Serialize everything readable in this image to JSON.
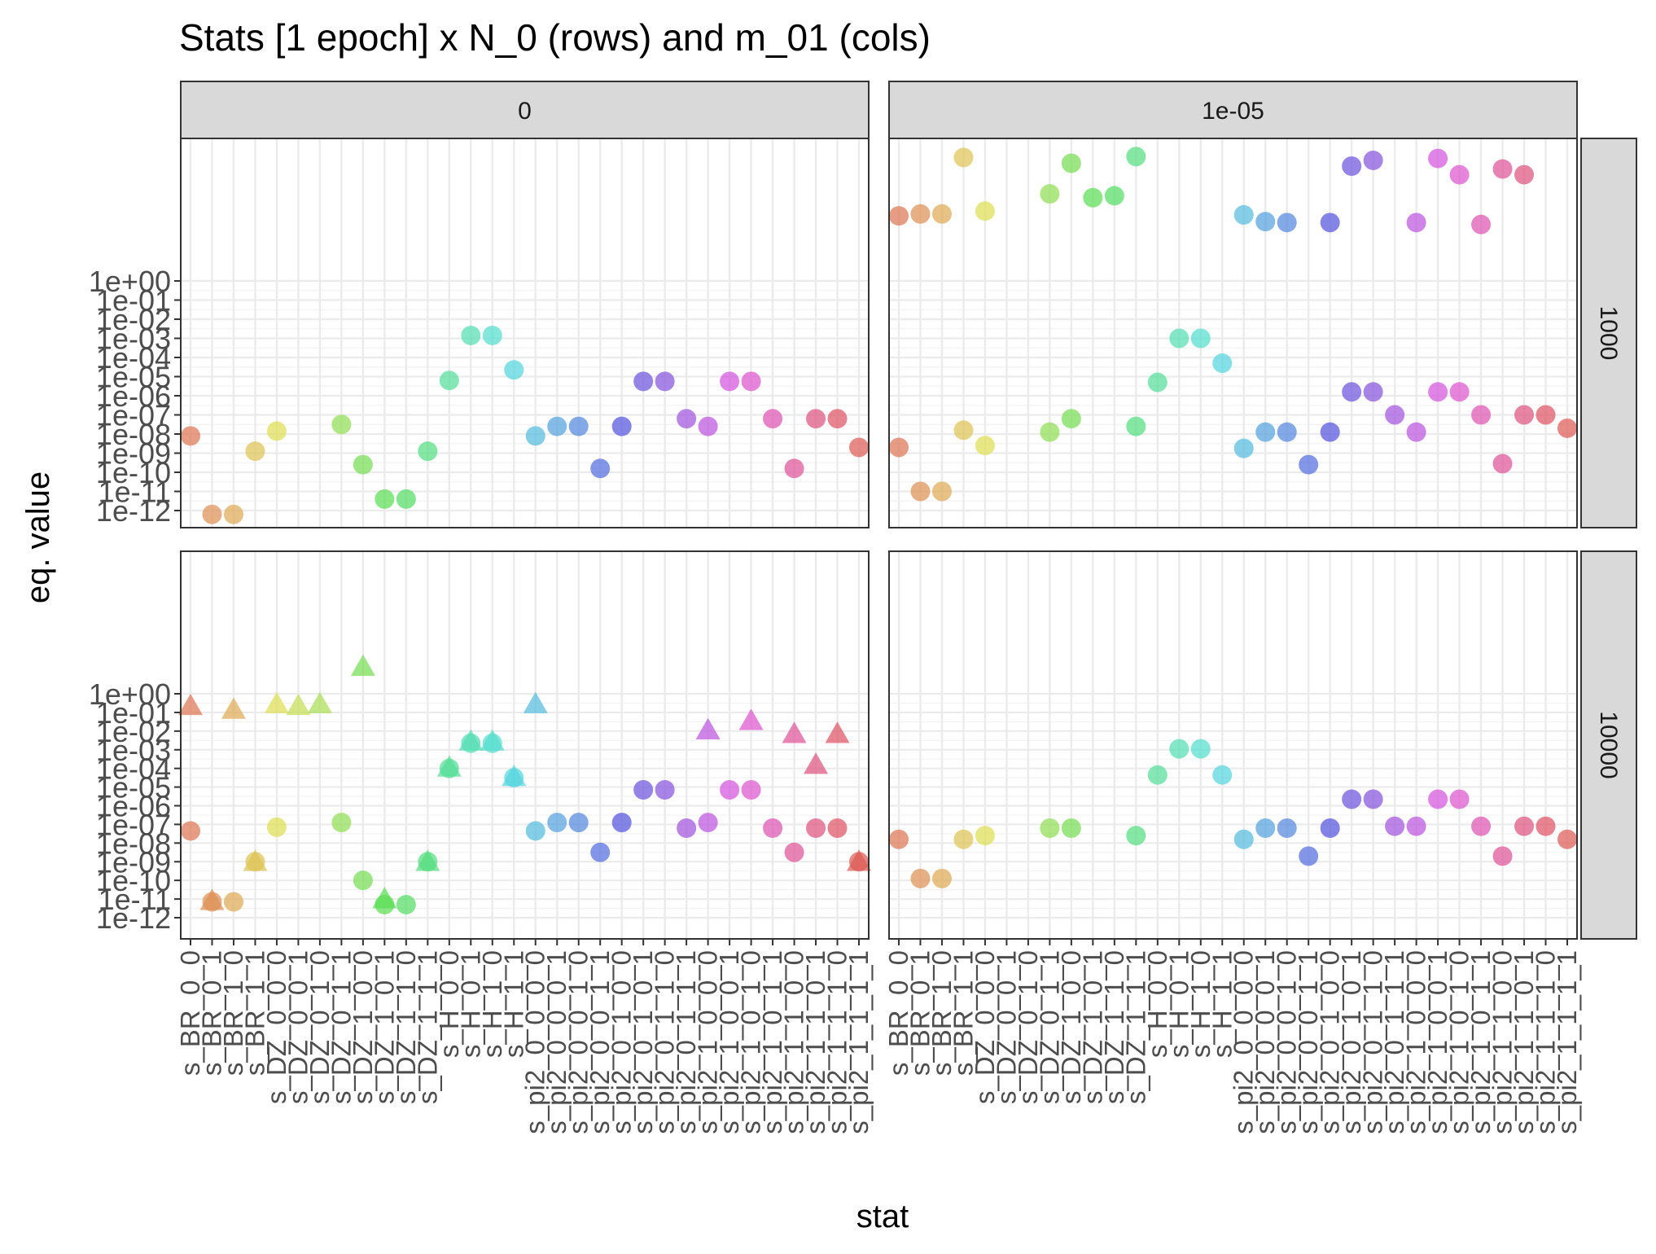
{
  "chart_data": {
    "type": "scatter",
    "title": "Stats [1 epoch] x N_0 (rows) and m_01 (cols)",
    "xlabel": "stat",
    "ylabel": "eq. value",
    "y_scale": "log10",
    "ylim_exponent": [
      -12,
      0
    ],
    "y_ticks": [
      "1e+00",
      "1e-01",
      "1e-02",
      "1e-03",
      "1e-04",
      "1e-05",
      "1e-06",
      "1e-07",
      "1e-08",
      "1e-09",
      "1e-10",
      "1e-11",
      "1e-12"
    ],
    "facet_cols_label": "m_01",
    "facet_rows_label": "N_0",
    "facet_cols": [
      "0",
      "1e-05"
    ],
    "facet_rows": [
      "1000",
      "10000"
    ],
    "categories": [
      "s_BR_0_0",
      "s_BR_0_1",
      "s_BR_1_0",
      "s_BR_1_1",
      "s_DZ_0_0_0",
      "s_DZ_0_0_1",
      "s_DZ_0_1_0",
      "s_DZ_0_1_1",
      "s_DZ_1_0_0",
      "s_DZ_1_0_1",
      "s_DZ_1_1_0",
      "s_DZ_1_1_1",
      "s_H_0_0",
      "s_H_0_1",
      "s_H_1_0",
      "s_H_1_1",
      "s_pi2_0_0_0_0",
      "s_pi2_0_0_0_1",
      "s_pi2_0_0_1_0",
      "s_pi2_0_0_1_1",
      "s_pi2_0_1_0_0",
      "s_pi2_0_1_0_1",
      "s_pi2_0_1_1_0",
      "s_pi2_0_1_1_1",
      "s_pi2_1_0_0_0",
      "s_pi2_1_0_0_1",
      "s_pi2_1_0_1_0",
      "s_pi2_1_0_1_1",
      "s_pi2_1_1_0_0",
      "s_pi2_1_1_0_1",
      "s_pi2_1_1_1_0",
      "s_pi2_1_1_1_1"
    ],
    "x_tick_lines": [
      [
        "s_BR_0_0",
        "s_BR_0_1",
        "s_BR_1_0",
        "s_BR_1_1"
      ],
      [
        "s_DZ_0_0_0",
        "s_DZ_0_0_1",
        "s_DZ_0_1_0",
        "s_DZ_0_1_1",
        "s_DZ_1_0_0",
        "s_DZ_1_0_1",
        "s_DZ_1_1_0",
        "s_DZ_1_1_1"
      ],
      [
        "s_H_0_0",
        "s_H_0_1",
        "s_H_1_0",
        "s_H_1_1"
      ],
      [
        "s_pi2_0_0_0_0",
        "s_pi2_0_0_0_1",
        "s_pi2_0_0_1_0",
        "s_pi2_0_0_1_1",
        "s_pi2_0_1_0_0",
        "s_pi2_0_1_0_1",
        "s_pi2_0_1_1_0",
        "s_pi2_0_1_1_1",
        "s_pi2_1_0_0_0",
        "s_pi2_1_0_0_1",
        "s_pi2_1_0_1_0",
        "s_pi2_1_0_1_1",
        "s_pi2_1_1_0_0",
        "s_pi2_1_1_0_1",
        "s_pi2_1_1_1_0",
        "s_pi2_1_1_1_1"
      ]
    ],
    "grid": true,
    "legend": "none",
    "panels": [
      {
        "row": "1000",
        "col": "0",
        "series": [
          {
            "shape": "circle",
            "points": [
              [
                0,
                -8.1
              ],
              [
                1,
                -12.2
              ],
              [
                2,
                -12.2
              ],
              [
                3,
                -8.9
              ],
              [
                4,
                -7.85
              ],
              [
                7,
                -7.5
              ],
              [
                8,
                -9.6
              ],
              [
                9,
                -11.4
              ],
              [
                10,
                -11.4
              ],
              [
                11,
                -8.9
              ],
              [
                12,
                -5.2
              ],
              [
                13,
                -2.85
              ],
              [
                14,
                -2.85
              ],
              [
                15,
                -4.65
              ],
              [
                16,
                -8.1
              ],
              [
                17,
                -7.6
              ],
              [
                18,
                -7.6
              ],
              [
                19,
                -9.8
              ],
              [
                20,
                -7.6
              ],
              [
                21,
                -5.25
              ],
              [
                22,
                -5.25
              ],
              [
                23,
                -7.2
              ],
              [
                24,
                -7.6
              ],
              [
                25,
                -5.25
              ],
              [
                26,
                -5.25
              ],
              [
                27,
                -7.2
              ],
              [
                28,
                -9.8
              ],
              [
                29,
                -7.2
              ],
              [
                30,
                -7.2
              ],
              [
                31,
                -8.7
              ]
            ]
          }
        ]
      },
      {
        "row": "1000",
        "col": "1e-05",
        "series": [
          {
            "shape": "circle",
            "points": [
              [
                0,
                -8.7
              ],
              [
                1,
                -11.0
              ],
              [
                2,
                -11.0
              ],
              [
                3,
                -7.8
              ],
              [
                4,
                -8.6
              ],
              [
                7,
                -7.9
              ],
              [
                8,
                -7.2
              ],
              [
                11,
                -7.6
              ],
              [
                12,
                -5.3
              ],
              [
                13,
                -3.0
              ],
              [
                14,
                -3.0
              ],
              [
                15,
                -4.3
              ],
              [
                16,
                -8.75
              ],
              [
                17,
                -7.9
              ],
              [
                18,
                -7.9
              ],
              [
                19,
                -9.6
              ],
              [
                20,
                -7.9
              ],
              [
                21,
                -5.8
              ],
              [
                22,
                -5.8
              ],
              [
                23,
                -7.0
              ],
              [
                24,
                -7.9
              ],
              [
                25,
                -5.8
              ],
              [
                26,
                -5.8
              ],
              [
                27,
                -7.0
              ],
              [
                28,
                -9.55
              ],
              [
                29,
                -7.0
              ],
              [
                30,
                -7.0
              ],
              [
                31,
                -7.7
              ]
            ]
          },
          {
            "shape": "circle",
            "points": [
              [
                0,
                3.4
              ],
              [
                1,
                3.5
              ],
              [
                2,
                3.5
              ],
              [
                3,
                6.45
              ],
              [
                4,
                3.65
              ],
              [
                7,
                4.55
              ],
              [
                8,
                6.15
              ],
              [
                9,
                4.35
              ],
              [
                10,
                4.45
              ],
              [
                11,
                6.5
              ],
              [
                16,
                3.45
              ],
              [
                17,
                3.1
              ],
              [
                18,
                3.05
              ],
              [
                20,
                3.05
              ],
              [
                21,
                6.0
              ],
              [
                22,
                6.3
              ],
              [
                24,
                3.05
              ],
              [
                25,
                6.4
              ],
              [
                26,
                5.55
              ],
              [
                27,
                2.95
              ],
              [
                28,
                5.85
              ],
              [
                29,
                5.55
              ]
            ]
          }
        ]
      },
      {
        "row": "10000",
        "col": "0",
        "series": [
          {
            "shape": "circle",
            "points": [
              [
                0,
                -7.35
              ],
              [
                1,
                -11.15
              ],
              [
                2,
                -11.15
              ],
              [
                3,
                -9.0
              ],
              [
                4,
                -7.15
              ],
              [
                7,
                -6.9
              ],
              [
                8,
                -10.0
              ],
              [
                9,
                -11.3
              ],
              [
                10,
                -11.3
              ],
              [
                11,
                -9.0
              ],
              [
                12,
                -4.0
              ],
              [
                13,
                -2.65
              ],
              [
                14,
                -2.65
              ],
              [
                15,
                -4.5
              ],
              [
                16,
                -7.35
              ],
              [
                17,
                -6.9
              ],
              [
                18,
                -6.9
              ],
              [
                19,
                -8.5
              ],
              [
                20,
                -6.9
              ],
              [
                21,
                -5.15
              ],
              [
                22,
                -5.15
              ],
              [
                23,
                -7.2
              ],
              [
                24,
                -6.9
              ],
              [
                25,
                -5.15
              ],
              [
                26,
                -5.15
              ],
              [
                27,
                -7.2
              ],
              [
                28,
                -8.5
              ],
              [
                29,
                -7.2
              ],
              [
                30,
                -7.2
              ],
              [
                31,
                -9.0
              ]
            ]
          },
          {
            "shape": "triangle",
            "points": [
              [
                0,
                -0.65
              ],
              [
                1,
                -11.1
              ],
              [
                2,
                -0.85
              ],
              [
                3,
                -9.0
              ],
              [
                4,
                -0.55
              ],
              [
                5,
                -0.65
              ],
              [
                6,
                -0.55
              ],
              [
                8,
                1.45
              ],
              [
                9,
                -11.0
              ],
              [
                11,
                -9.0
              ],
              [
                12,
                -3.95
              ],
              [
                13,
                -2.55
              ],
              [
                14,
                -2.55
              ],
              [
                15,
                -4.45
              ],
              [
                16,
                -0.55
              ],
              [
                24,
                -1.95
              ],
              [
                26,
                -1.45
              ],
              [
                28,
                -2.15
              ],
              [
                29,
                -3.8
              ],
              [
                30,
                -2.15
              ],
              [
                31,
                -9.0
              ]
            ]
          }
        ]
      },
      {
        "row": "10000",
        "col": "1e-05",
        "series": [
          {
            "shape": "circle",
            "points": [
              [
                0,
                -7.8
              ],
              [
                1,
                -9.9
              ],
              [
                2,
                -9.9
              ],
              [
                3,
                -7.8
              ],
              [
                4,
                -7.6
              ],
              [
                7,
                -7.2
              ],
              [
                8,
                -7.2
              ],
              [
                11,
                -7.6
              ],
              [
                12,
                -4.35
              ],
              [
                13,
                -2.95
              ],
              [
                14,
                -2.95
              ],
              [
                15,
                -4.35
              ],
              [
                16,
                -7.8
              ],
              [
                17,
                -7.2
              ],
              [
                18,
                -7.2
              ],
              [
                19,
                -8.7
              ],
              [
                20,
                -7.2
              ],
              [
                21,
                -5.65
              ],
              [
                22,
                -5.65
              ],
              [
                23,
                -7.1
              ],
              [
                24,
                -7.1
              ],
              [
                25,
                -5.65
              ],
              [
                26,
                -5.65
              ],
              [
                27,
                -7.1
              ],
              [
                28,
                -8.7
              ],
              [
                29,
                -7.1
              ],
              [
                30,
                -7.1
              ],
              [
                31,
                -7.8
              ]
            ]
          }
        ]
      }
    ]
  }
}
